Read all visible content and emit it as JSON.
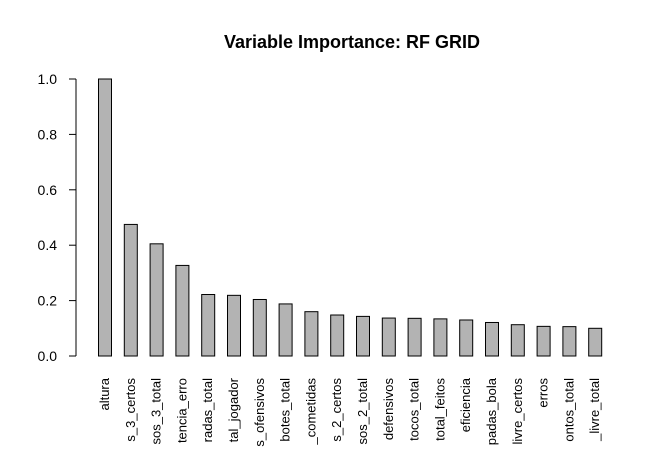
{
  "chart_data": {
    "type": "bar",
    "title": "Variable Importance: RF GRID",
    "xlabel": "",
    "ylabel": "",
    "ylim": [
      0,
      1.0
    ],
    "yticks": [
      "0.0",
      "0.2",
      "0.4",
      "0.6",
      "0.8",
      "1.0"
    ],
    "grid": false,
    "bar_color": "#b3b3b3",
    "categories": [
      "altura",
      "s_3_certos",
      "sos_3_total",
      "tencia_erro",
      "radas_total",
      "tal_jogador",
      "s_ofensivos",
      "botes_total",
      "_cometidas",
      "s_2_certos",
      "sos_2_total",
      "defensivos",
      "tocos_total",
      "total_feitos",
      "eficiencia",
      "padas_bola",
      "livre_certos",
      "erros",
      "ontos_total",
      "_livre_total"
    ],
    "values": [
      1.0,
      0.475,
      0.405,
      0.327,
      0.222,
      0.219,
      0.204,
      0.188,
      0.16,
      0.148,
      0.143,
      0.137,
      0.136,
      0.134,
      0.13,
      0.121,
      0.113,
      0.107,
      0.106,
      0.1
    ]
  }
}
